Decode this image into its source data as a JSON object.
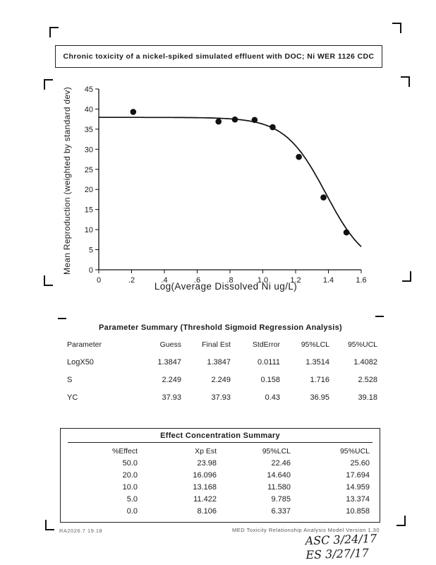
{
  "page": {
    "title": "Chronic toxicity of a nickel-spiked simulated effluent with DOC; Ni WER 1126 CDC"
  },
  "chart_data": {
    "type": "scatter",
    "title": "",
    "xlabel": "Log(Average Dissolved Ni ug/L)",
    "ylabel": "Mean Reproduction (weighted by standard dev)",
    "xlim": [
      0,
      1.6
    ],
    "ylim": [
      0,
      45
    ],
    "grid": false,
    "xticks": [
      0,
      0.2,
      0.4,
      0.6,
      0.8,
      1.0,
      1.2,
      1.4,
      1.6
    ],
    "xtick_labels": [
      "0",
      ".2",
      ".4",
      ".6",
      ".8",
      "1.0",
      "1.2",
      "1.4",
      "1.6"
    ],
    "yticks": [
      0,
      5,
      10,
      15,
      20,
      25,
      30,
      35,
      40,
      45
    ],
    "points": [
      {
        "x": 0.21,
        "y": 39.3
      },
      {
        "x": 0.73,
        "y": 36.9
      },
      {
        "x": 0.83,
        "y": 37.4
      },
      {
        "x": 0.95,
        "y": 37.3
      },
      {
        "x": 1.06,
        "y": 35.5
      },
      {
        "x": 1.22,
        "y": 28.1
      },
      {
        "x": 1.37,
        "y": 18.0
      },
      {
        "x": 1.51,
        "y": 9.3
      }
    ],
    "curve": {
      "model": "sigmoid",
      "yc": 37.93,
      "x50": 1.3847,
      "k": 8.0
    }
  },
  "parameter_summary": {
    "title": "Parameter Summary (Threshold Sigmoid Regression Analysis)",
    "headers": [
      "Parameter",
      "Guess",
      "Final Est",
      "StdError",
      "95%LCL",
      "95%UCL"
    ],
    "rows": [
      {
        "cells": [
          "LogX50",
          "1.3847",
          "1.3847",
          "0.0111",
          "1.3514",
          "1.4082"
        ]
      },
      {
        "cells": [
          "S",
          "2.249",
          "2.249",
          "0.158",
          "1.716",
          "2.528"
        ]
      },
      {
        "cells": [
          "YC",
          "37.93",
          "37.93",
          "0.43",
          "36.95",
          "39.18"
        ]
      }
    ]
  },
  "effect_summary": {
    "title": "Effect Concentration Summary",
    "headers": [
      "%Effect",
      "Xp Est",
      "95%LCL",
      "95%UCL"
    ],
    "rows": [
      {
        "cells": [
          "50.0",
          "23.98",
          "22.46",
          "25.60"
        ]
      },
      {
        "cells": [
          "20.0",
          "16.096",
          "14.640",
          "17.694"
        ]
      },
      {
        "cells": [
          "10.0",
          "13.168",
          "11.580",
          "14.959"
        ]
      },
      {
        "cells": [
          "5.0",
          "11.422",
          "9.785",
          "13.374"
        ]
      },
      {
        "cells": [
          "0.0",
          "8.106",
          "6.337",
          "10.858"
        ]
      }
    ]
  },
  "footer": {
    "left": "RA2026.7  19.18",
    "right": "MED Toxicity Relationship Analysis Model Version 1.30"
  },
  "annotations": {
    "line1": "ASC 3/24/17",
    "line2": "ES 3/27/17"
  }
}
